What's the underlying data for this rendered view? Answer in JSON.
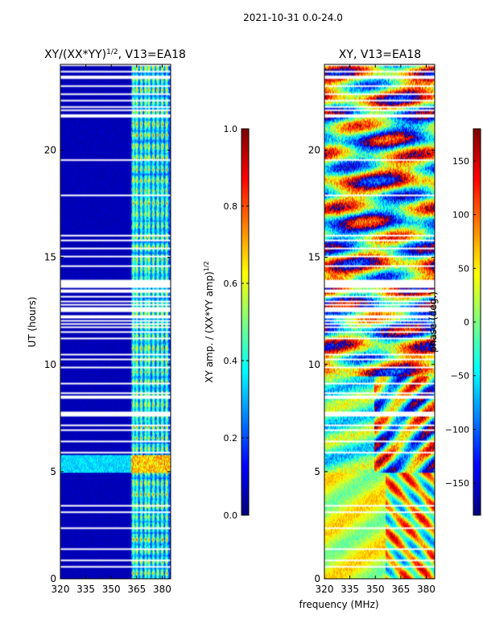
{
  "suptitle": "2021-10-31 0.0-24.0",
  "chart_data": [
    {
      "type": "heatmap",
      "title": "XY/(XX*YY)",
      "title_sup": "1/2",
      "title_suffix": ", V13=EA18",
      "xlabel": "",
      "ylabel": "UT (hours)",
      "xlim": [
        320,
        385
      ],
      "ylim": [
        0,
        24
      ],
      "xticks": [
        320,
        335,
        350,
        365,
        380
      ],
      "yticks": [
        0,
        5,
        10,
        15,
        20
      ],
      "colorbar": {
        "label": "XY amp. / (XX*YY amp)",
        "label_sup": "1/2",
        "range": [
          0.0,
          1.0
        ],
        "ticks": [
          "0.0",
          "0.2",
          "0.4",
          "0.6",
          "0.8",
          "1.0"
        ],
        "tick_values": [
          0.0,
          0.2,
          0.4,
          0.6,
          0.8,
          1.0
        ],
        "colormap": "jet"
      },
      "note": "Low (~0.05) amplitude across 320-362 MHz; elevated 0.3-0.7 in channel stripes between ~362-382 MHz; elevated band near 5.0-5.8 h; white rows are flagged data"
    },
    {
      "type": "heatmap",
      "title": "XY, V13=EA18",
      "xlabel": "frequency (MHz)",
      "ylabel": "",
      "xlim": [
        320,
        385
      ],
      "ylim": [
        0,
        24
      ],
      "xticks": [
        320,
        335,
        350,
        365,
        380
      ],
      "yticks": [
        0,
        5,
        10,
        15,
        20
      ],
      "colorbar": {
        "label": "phase (deg.)",
        "range": [
          -180,
          180
        ],
        "ticks": [
          "−150",
          "−100",
          "−50",
          "0",
          "50",
          "100",
          "150"
        ],
        "tick_values": [
          -150,
          -100,
          -50,
          0,
          50,
          100,
          150
        ],
        "colormap": "jet"
      },
      "note": "Phase noisy across band; yellow/green (~0 to 50 deg) below 5 h, mixed elsewhere; white rows are flagged data"
    }
  ],
  "colors": {
    "background": "#ffffff",
    "axis": "#000000",
    "flag": "#ffffff",
    "jet_low": "#00007f",
    "jet_high": "#7f0000"
  }
}
